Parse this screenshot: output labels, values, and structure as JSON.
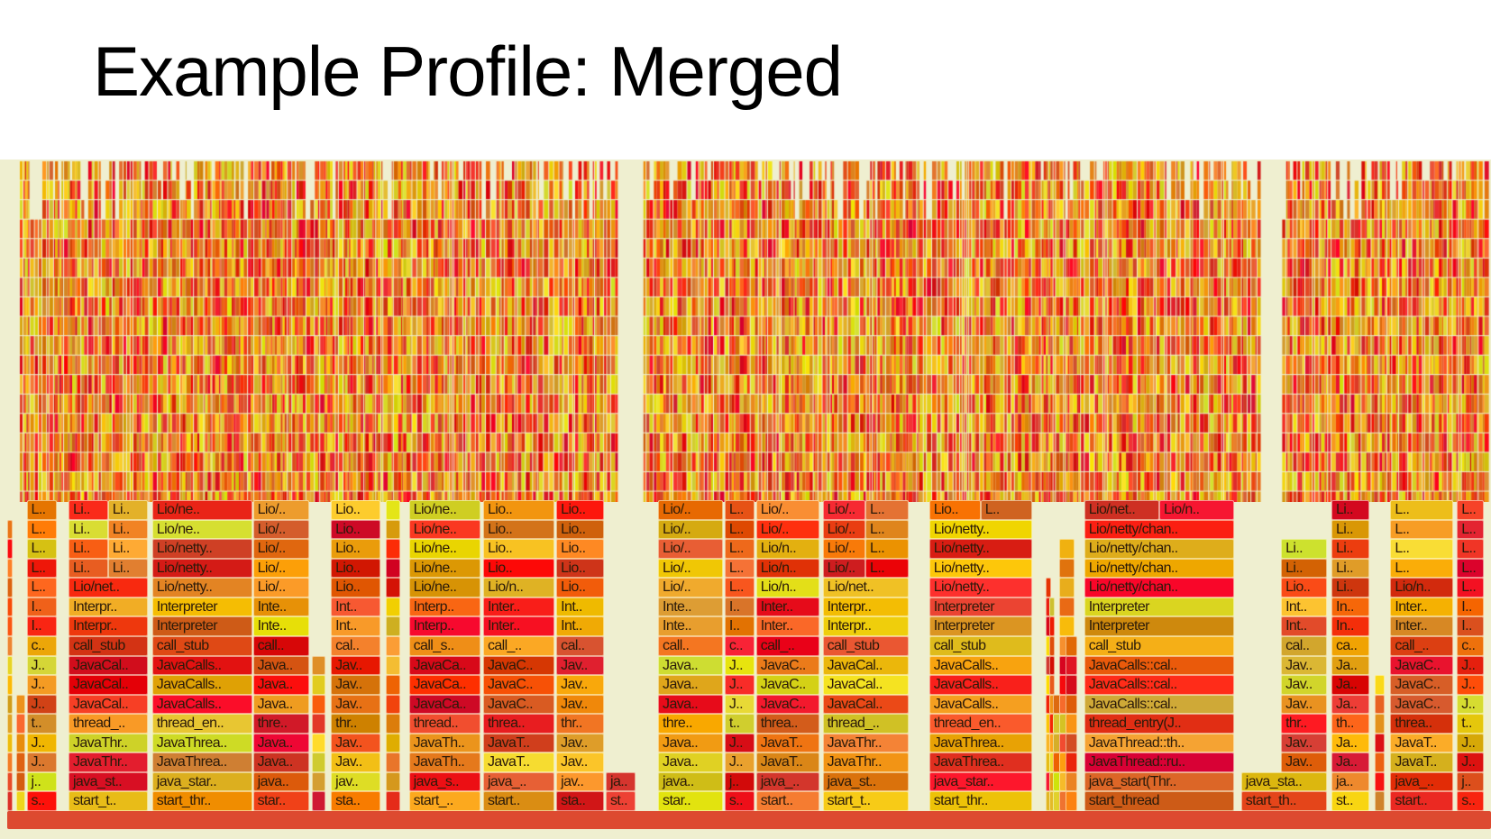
{
  "slide": {
    "title": "Example Profile: Merged"
  },
  "flame_graph": {
    "palette": {
      "bg": "#efefd0",
      "root": "#dd4a30"
    },
    "columns": [
      {
        "frames": [
          "s..",
          "j..",
          "J..",
          "J..",
          "t..",
          "J..",
          "J..",
          "J..",
          "c..",
          "I..",
          "I..",
          "L..",
          "L..",
          "L..",
          "L..",
          "L.."
        ]
      },
      {
        "frames": [
          "start_t..",
          "java_st..",
          "JavaThr..",
          "JavaThr..",
          "thread_..",
          "JavaCal..",
          "JavaCal..",
          "JavaCal..",
          "call_stub",
          "Interpr..",
          "Interpr..",
          "Lio/net..",
          [
            "Li..",
            "Li.."
          ],
          [
            "Li..",
            "Li.."
          ],
          [
            "Li..",
            "Li.."
          ],
          [
            "Li..",
            "Li.."
          ]
        ]
      },
      {
        "frames": [
          "start_thr..",
          "java_star..",
          "JavaThrea..",
          "JavaThrea..",
          "thread_en..",
          "JavaCalls..",
          "JavaCalls..",
          "JavaCalls..",
          "call_stub",
          "Interpreter",
          "Interpreter",
          "Lio/netty..",
          "Lio/netty..",
          "Lio/netty..",
          "Lio/ne..",
          "Lio/ne.."
        ]
      },
      {
        "frames": [
          "star..",
          "java..",
          "Java..",
          "Java..",
          "thre..",
          "Java..",
          "Java..",
          "Java..",
          "call..",
          "Inte..",
          "Inte..",
          "Lio/..",
          "Lio/..",
          "Lio/..",
          "Lio/..",
          "Lio/.."
        ]
      },
      {
        "frames": [
          "sta..",
          "jav..",
          "Jav..",
          "Jav..",
          "thr..",
          "Jav..",
          "Jav..",
          "Jav..",
          "cal..",
          "Int..",
          "Int..",
          "Lio..",
          "Lio..",
          "Lio..",
          "Lio..",
          "Lio.."
        ]
      },
      {
        "frames": [
          "start_..",
          "java_s..",
          "JavaTh..",
          "JavaTh..",
          "thread..",
          "JavaCa..",
          "JavaCa..",
          "JavaCa..",
          "call_s..",
          "Interp..",
          "Interp..",
          "Lio/ne..",
          "Lio/ne..",
          "Lio/ne..",
          "Lio/ne..",
          "Lio/ne.."
        ]
      },
      {
        "frames": [
          "start..",
          "java_..",
          "JavaT..",
          "JavaT..",
          "threa..",
          "JavaC..",
          "JavaC..",
          "JavaC..",
          "call_..",
          "Inter..",
          "Inter..",
          "Lio/n..",
          "Lio..",
          "Lio..",
          "Lio..",
          "Lio.."
        ]
      },
      {
        "frames": [
          "sta..",
          "jav..",
          "Jav..",
          "Jav..",
          "thr..",
          "Jav..",
          "Jav..",
          "Jav..",
          "cal..",
          "Int..",
          "Int..",
          "Lio..",
          "Lio..",
          "Lio..",
          "Lio..",
          "Lio.."
        ]
      },
      {
        "frames": [
          "st..",
          "ja.."
        ]
      },
      {
        "frames": [
          "star..",
          "java..",
          "Java..",
          "Java..",
          "thre..",
          "Java..",
          "Java..",
          "Java..",
          "call..",
          "Inte..",
          "Inte..",
          "Lio/..",
          "Lio/..",
          "Lio/..",
          "Lio/..",
          "Lio/.."
        ]
      },
      {
        "frames": [
          "s..",
          "j..",
          "J..",
          "J..",
          "t..",
          "J..",
          "J..",
          "J..",
          "c..",
          "I..",
          "I..",
          "L..",
          "L..",
          "L..",
          "L..",
          "L.."
        ]
      },
      {
        "frames": [
          "start..",
          "java_..",
          "JavaT..",
          "JavaT..",
          "threa..",
          "JavaC..",
          "JavaC..",
          "JavaC..",
          "call_..",
          "Inter..",
          "Inter..",
          "Lio/n..",
          "Lio/n..",
          "Lio/n..",
          "Lio/..",
          "Lio/.."
        ]
      },
      {
        "frames": [
          "start_t..",
          "java_st..",
          "JavaThr..",
          "JavaThr..",
          "thread_..",
          "JavaCal..",
          "JavaCal..",
          "JavaCal..",
          "call_stub",
          "Interpr..",
          "Interpr..",
          "Lio/net..",
          [
            "Lio/..",
            "L.."
          ],
          [
            "Lio/..",
            "L.."
          ],
          [
            "Lio/..",
            "L.."
          ],
          [
            "Lio/..",
            "L.."
          ]
        ]
      },
      {
        "frames": [
          "start_thr..",
          "java_star..",
          "JavaThrea..",
          "JavaThrea..",
          "thread_en..",
          "JavaCalls..",
          "JavaCalls..",
          "JavaCalls..",
          "call_stub",
          "Interpreter",
          "Interpreter",
          "Lio/netty..",
          "Lio/netty..",
          "Lio/netty..",
          "Lio/netty..",
          [
            "Lio..",
            "L.."
          ]
        ]
      },
      {
        "frames": [
          "start_thread",
          "java_start(Thr..",
          "JavaThread::ru..",
          "JavaThread::th..",
          "thread_entry(J..",
          "JavaCalls::cal..",
          "JavaCalls::cal..",
          "JavaCalls::cal..",
          "call_stub",
          "Interpreter",
          "Interpreter",
          "Lio/netty/chan..",
          "Lio/netty/chan..",
          "Lio/netty/chan..",
          "Lio/netty/chan..",
          [
            "Lio/net..",
            "Lio/n.."
          ]
        ]
      },
      {
        "frames": [
          "start_th..",
          "java_sta.."
        ]
      },
      {
        "frames": [
          "Jav..",
          "Jav..",
          "thr..",
          "Jav..",
          "Jav..",
          "Jav..",
          "cal..",
          "Int..",
          "Int..",
          "Lio..",
          "Li..",
          "Li.."
        ]
      },
      {
        "frames": [
          "st..",
          "ja..",
          "Ja..",
          "Ja..",
          "th..",
          "Ja..",
          "Ja..",
          "Ja..",
          "ca..",
          "In..",
          "In..",
          "Li..",
          "Li..",
          "Li..",
          "Li..",
          "Li.."
        ]
      },
      {
        "frames": [
          "start..",
          "java_..",
          "JavaT..",
          "JavaT..",
          "threa..",
          "JavaC..",
          "JavaC..",
          "JavaC..",
          "call_..",
          "Inter..",
          "Inter..",
          "Lio/n..",
          "L..",
          "L..",
          "L..",
          "L.."
        ]
      },
      {
        "frames": [
          "s..",
          "j..",
          "J..",
          "J..",
          "t..",
          "J..",
          "J..",
          "J..",
          "c..",
          "I..",
          "I..",
          "L..",
          "L..",
          "L..",
          "L..",
          "L.."
        ]
      }
    ]
  }
}
